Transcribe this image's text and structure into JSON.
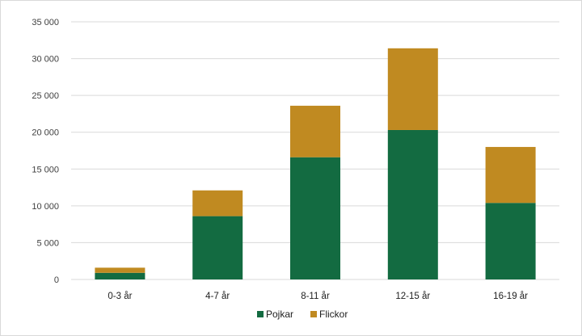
{
  "chart_data": {
    "type": "bar",
    "stacked": true,
    "categories": [
      "0-3 år",
      "4-7 år",
      "8-11 år",
      "12-15 år",
      "16-19 år"
    ],
    "series": [
      {
        "name": "Pojkar",
        "color": "#136b41",
        "values": [
          900,
          8600,
          16600,
          20300,
          10400
        ]
      },
      {
        "name": "Flickor",
        "color": "#c08a21",
        "values": [
          700,
          3500,
          7000,
          11100,
          7600
        ]
      }
    ],
    "y_ticks": [
      "0",
      "5 000",
      "10 000",
      "15 000",
      "20 000",
      "25 000",
      "30 000",
      "35 000"
    ],
    "ylim": [
      0,
      35000
    ],
    "grid": true,
    "legend_position": "bottom"
  }
}
